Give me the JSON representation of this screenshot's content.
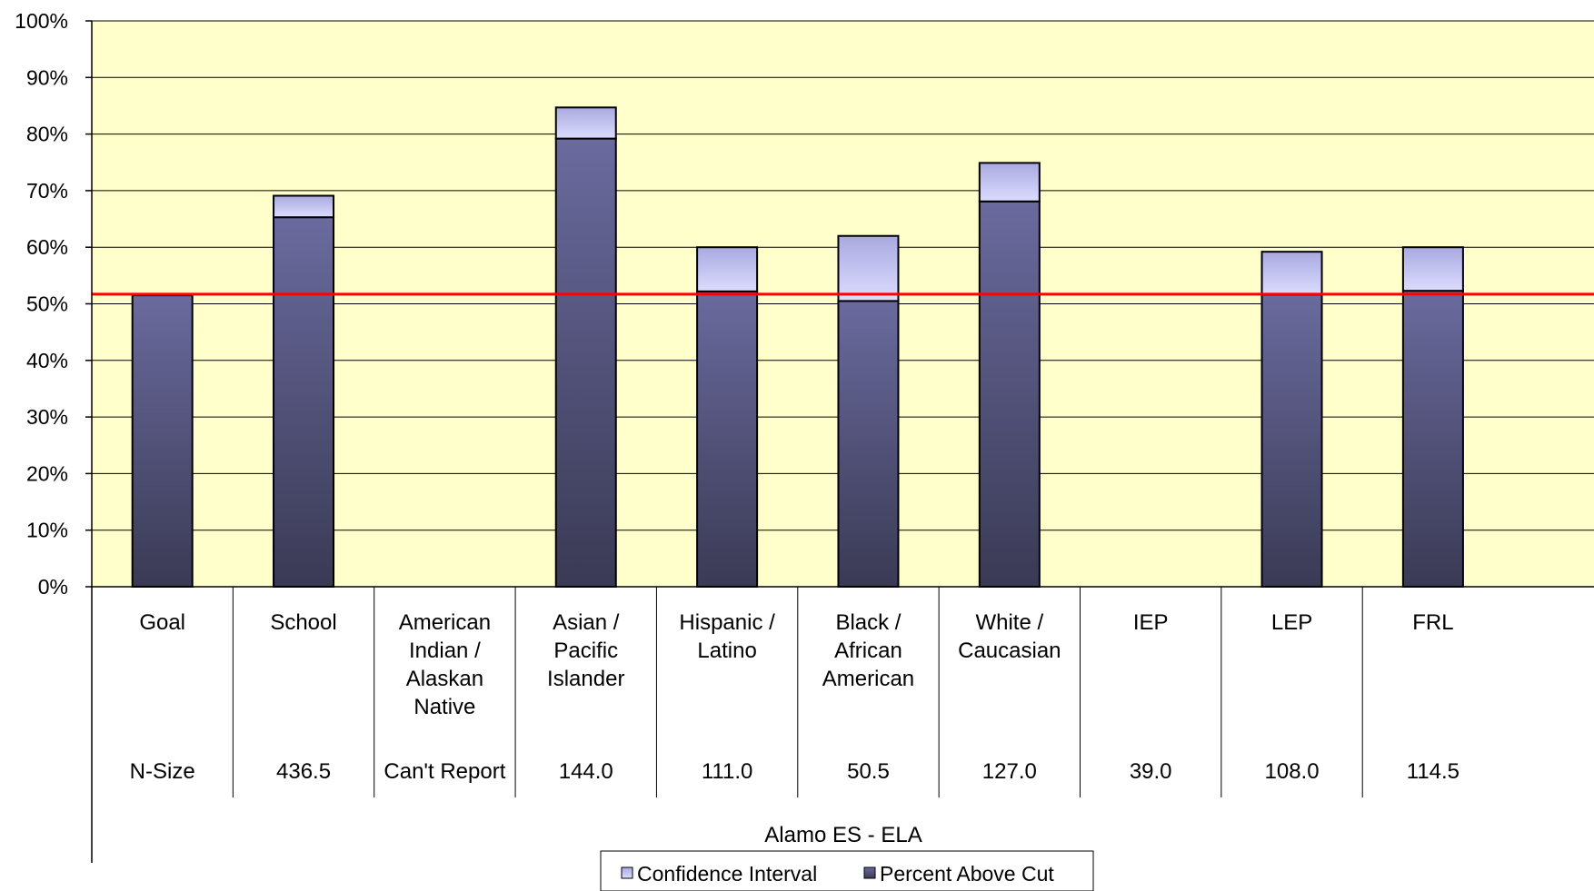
{
  "chart_data": {
    "type": "bar",
    "stacked": true,
    "xlabel": "Alamo ES - ELA",
    "ylim": [
      0,
      100
    ],
    "y_ticks": [
      "0%",
      "10%",
      "20%",
      "30%",
      "40%",
      "50%",
      "60%",
      "70%",
      "80%",
      "90%",
      "100%"
    ],
    "categories": [
      [
        "Goal"
      ],
      [
        "School"
      ],
      [
        "American",
        "Indian /",
        "Alaskan",
        "Native"
      ],
      [
        "Asian /",
        "Pacific",
        "Islander"
      ],
      [
        "Hispanic /",
        "Latino"
      ],
      [
        "Black /",
        "African",
        "American"
      ],
      [
        "White /",
        "Caucasian"
      ],
      [
        "IEP"
      ],
      [
        "LEP"
      ],
      [
        "FRL"
      ]
    ],
    "n_size_label": "N-Size",
    "n_size": [
      "N-Size",
      "436.5",
      "Can't Report",
      "144.0",
      "111.0",
      "50.5",
      "127.0",
      "39.0",
      "108.0",
      "114.5"
    ],
    "series": [
      {
        "name": "Percent Above Cut",
        "values": [
          51.5,
          65.3,
          null,
          79.2,
          52.2,
          50.5,
          68.1,
          null,
          51.6,
          52.3
        ]
      },
      {
        "name": "Confidence Interval",
        "values": [
          null,
          3.8,
          null,
          5.5,
          7.8,
          11.5,
          6.8,
          null,
          7.6,
          7.7
        ]
      }
    ],
    "goal_line": 51.7,
    "grid": true,
    "legend": "bottom-center",
    "colors": {
      "plot_background": "#ffffcc",
      "percent_top": "#6a6a9e",
      "percent_bottom": "#3a3a55",
      "ci_top": "#a9a9e0",
      "ci_bottom": "#dcdcff",
      "goal_line": "#ff0000"
    }
  }
}
